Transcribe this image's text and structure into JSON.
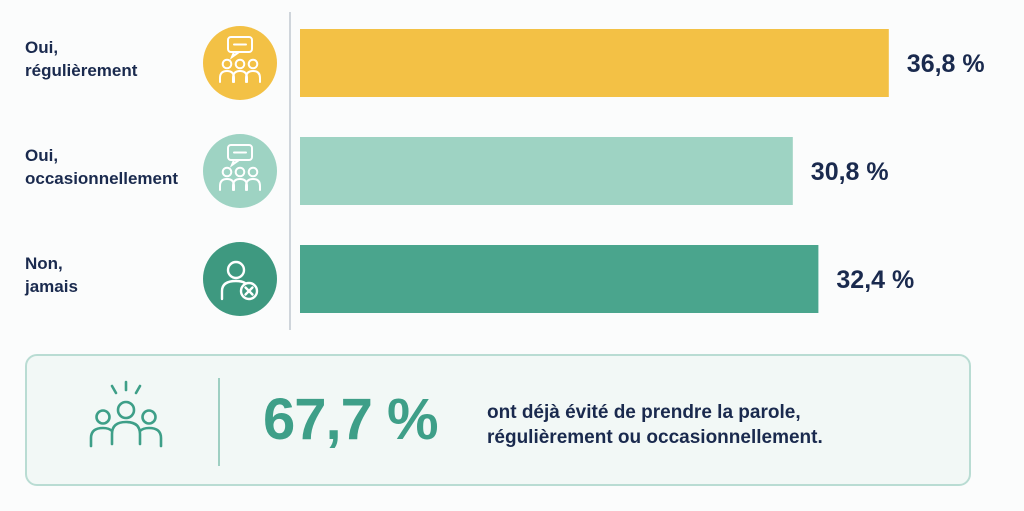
{
  "chart_data": {
    "type": "bar",
    "orientation": "horizontal",
    "categories": [
      {
        "lines": [
          "Oui,",
          "régulièrement"
        ],
        "icon": "speech-bubble-group-icon"
      },
      {
        "lines": [
          "Oui,",
          "occasionnellement"
        ],
        "icon": "speech-bubble-group-icon"
      },
      {
        "lines": [
          "Non,",
          "jamais"
        ],
        "icon": "person-x-icon"
      }
    ],
    "values": [
      36.8,
      30.8,
      32.4
    ],
    "value_labels": [
      "36,8 %",
      "30,8 %",
      "32,4 %"
    ],
    "colors": [
      "#f3c145",
      "#9ed3c3",
      "#4aa58d"
    ],
    "icon_colors": [
      "#f3c145",
      "#9ed3c3",
      "#3e9980"
    ],
    "xlim": [
      0,
      37
    ],
    "grid": false,
    "legend": "none"
  },
  "summary": {
    "percentage": "67,7 %",
    "text_line1": "ont déjà évité de prendre la parole,",
    "text_line2": "régulièrement ou occasionnellement.",
    "icon": "group-people-icon",
    "accent_color": "#3e9f88"
  }
}
